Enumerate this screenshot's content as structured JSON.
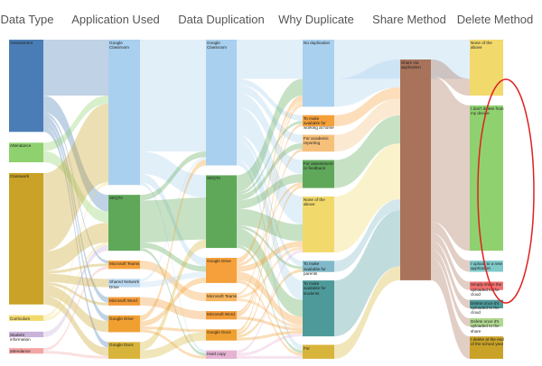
{
  "chart_data": {
    "type": "sankey",
    "columns": [
      {
        "name": "Data Type",
        "nodes": [
          {
            "label": "Assessment",
            "value": 33,
            "color": "#4a7db5"
          },
          {
            "label": "Attendance",
            "value": 7,
            "color": "#8fd16e"
          },
          {
            "label": "Classwork",
            "value": 47,
            "color": "#c9a227"
          },
          {
            "label": "Curriculum",
            "value": 2,
            "color": "#f2d96b"
          },
          {
            "label": "Student information",
            "value": 2,
            "color": "#c9b3d9"
          },
          {
            "label": "attendance",
            "value": 2,
            "color": "#f4a6a6"
          }
        ]
      },
      {
        "name": "Application Used",
        "nodes": [
          {
            "label": "Google Classroom",
            "value": 52,
            "color": "#a9d0ee"
          },
          {
            "label": "SEQTA",
            "value": 20,
            "color": "#5fa85a"
          },
          {
            "label": "Microsoft Teams",
            "value": 3,
            "color": "#f5a03a"
          },
          {
            "label": "Shared Network Drive",
            "value": 3,
            "color": "#bcd9f0"
          },
          {
            "label": "Microsoft Word",
            "value": 3,
            "color": "#f29a38"
          },
          {
            "label": "Google Drive",
            "value": 6,
            "color": "#f0a030"
          },
          {
            "label": "Google Docs",
            "value": 6,
            "color": "#d8b43a"
          }
        ]
      },
      {
        "name": "Data Duplication",
        "nodes": [
          {
            "label": "Google Classroom",
            "value": 45,
            "color": "#a9d0ee"
          },
          {
            "label": "SEQTA",
            "value": 26,
            "color": "#5fa85a"
          },
          {
            "label": "Google Drive",
            "value": 9,
            "color": "#f5a03a"
          },
          {
            "label": "Microsoft Teams",
            "value": 3,
            "color": "#f7b55e"
          },
          {
            "label": "Microsoft Word",
            "value": 3,
            "color": "#f29a38"
          },
          {
            "label": "Google Docs",
            "value": 4,
            "color": "#f0a030"
          },
          {
            "label": "Hard copy",
            "value": 3,
            "color": "#e6b3d3"
          }
        ]
      },
      {
        "name": "Why Duplicate",
        "nodes": [
          {
            "label": "No duplication",
            "value": 24,
            "color": "#a9d0ee"
          },
          {
            "label": "To make available for working at home",
            "value": 4,
            "color": "#f5a03a"
          },
          {
            "label": "For academic reporting",
            "value": 6,
            "color": "#f7c07a"
          },
          {
            "label": "For assessment or feedback",
            "value": 10,
            "color": "#5fa85a"
          },
          {
            "label": "None of the above",
            "value": 20,
            "color": "#f2d96b"
          },
          {
            "label": "To make available for parents",
            "value": 4,
            "color": "#7fb8c9"
          },
          {
            "label": "To make available for students",
            "value": 20,
            "color": "#4e9a9a"
          },
          {
            "label": "For",
            "value": 5,
            "color": "#d8b43a"
          }
        ]
      },
      {
        "name": "Share Method",
        "nodes": [
          {
            "label": "Share via application",
            "value": 79,
            "color": "#a8735a"
          }
        ]
      },
      {
        "name": "Delete Method",
        "nodes": [
          {
            "label": "None of the above",
            "value": 20,
            "color": "#f2d96b"
          },
          {
            "label": "I don't delete from my device",
            "value": 52,
            "color": "#8fd16e"
          },
          {
            "label": "I upload to a new application",
            "value": 4,
            "color": "#7fc9c9"
          },
          {
            "label": "Simply share the uploaded to the cloud",
            "value": 3,
            "color": "#f07070"
          },
          {
            "label": "Delete once it's uploaded to the cloud",
            "value": 3,
            "color": "#4e9a9a"
          },
          {
            "label": "Delete once it's uploaded to the share",
            "value": 3,
            "color": "#b0d890"
          },
          {
            "label": "I delete at the end of the school year",
            "value": 8,
            "color": "#c9a227"
          }
        ]
      }
    ],
    "links": [
      {
        "from": [
          0,
          0
        ],
        "to": [
          1,
          0
        ],
        "value": 20
      },
      {
        "from": [
          0,
          0
        ],
        "to": [
          1,
          1
        ],
        "value": 6
      },
      {
        "from": [
          0,
          0
        ],
        "to": [
          1,
          2
        ],
        "value": 1
      },
      {
        "from": [
          0,
          0
        ],
        "to": [
          1,
          4
        ],
        "value": 2
      },
      {
        "from": [
          0,
          0
        ],
        "to": [
          1,
          5
        ],
        "value": 2
      },
      {
        "from": [
          0,
          0
        ],
        "to": [
          1,
          6
        ],
        "value": 2
      },
      {
        "from": [
          0,
          1
        ],
        "to": [
          1,
          0
        ],
        "value": 3
      },
      {
        "from": [
          0,
          1
        ],
        "to": [
          1,
          1
        ],
        "value": 4
      },
      {
        "from": [
          0,
          2
        ],
        "to": [
          1,
          0
        ],
        "value": 28
      },
      {
        "from": [
          0,
          2
        ],
        "to": [
          1,
          1
        ],
        "value": 7
      },
      {
        "from": [
          0,
          2
        ],
        "to": [
          1,
          2
        ],
        "value": 1
      },
      {
        "from": [
          0,
          2
        ],
        "to": [
          1,
          3
        ],
        "value": 3
      },
      {
        "from": [
          0,
          2
        ],
        "to": [
          1,
          4
        ],
        "value": 1
      },
      {
        "from": [
          0,
          2
        ],
        "to": [
          1,
          5
        ],
        "value": 4
      },
      {
        "from": [
          0,
          2
        ],
        "to": [
          1,
          6
        ],
        "value": 3
      },
      {
        "from": [
          0,
          3
        ],
        "to": [
          1,
          0
        ],
        "value": 1
      },
      {
        "from": [
          0,
          3
        ],
        "to": [
          1,
          1
        ],
        "value": 1
      },
      {
        "from": [
          0,
          4
        ],
        "to": [
          1,
          1
        ],
        "value": 2
      },
      {
        "from": [
          0,
          5
        ],
        "to": [
          1,
          2
        ],
        "value": 1
      },
      {
        "from": [
          0,
          5
        ],
        "to": [
          1,
          6
        ],
        "value": 1
      },
      {
        "from": [
          1,
          0
        ],
        "to": [
          2,
          0
        ],
        "value": 40
      },
      {
        "from": [
          1,
          0
        ],
        "to": [
          2,
          1
        ],
        "value": 8
      },
      {
        "from": [
          1,
          0
        ],
        "to": [
          2,
          2
        ],
        "value": 3
      },
      {
        "from": [
          1,
          0
        ],
        "to": [
          2,
          6
        ],
        "value": 1
      },
      {
        "from": [
          1,
          1
        ],
        "to": [
          2,
          0
        ],
        "value": 2
      },
      {
        "from": [
          1,
          1
        ],
        "to": [
          2,
          1
        ],
        "value": 15
      },
      {
        "from": [
          1,
          1
        ],
        "to": [
          2,
          2
        ],
        "value": 2
      },
      {
        "from": [
          1,
          1
        ],
        "to": [
          2,
          6
        ],
        "value": 1
      },
      {
        "from": [
          1,
          2
        ],
        "to": [
          2,
          3
        ],
        "value": 3
      },
      {
        "from": [
          1,
          3
        ],
        "to": [
          2,
          0
        ],
        "value": 1
      },
      {
        "from": [
          1,
          3
        ],
        "to": [
          2,
          2
        ],
        "value": 2
      },
      {
        "from": [
          1,
          4
        ],
        "to": [
          2,
          4
        ],
        "value": 3
      },
      {
        "from": [
          1,
          5
        ],
        "to": [
          2,
          0
        ],
        "value": 2
      },
      {
        "from": [
          1,
          5
        ],
        "to": [
          2,
          2
        ],
        "value": 2
      },
      {
        "from": [
          1,
          5
        ],
        "to": [
          2,
          5
        ],
        "value": 1
      },
      {
        "from": [
          1,
          5
        ],
        "to": [
          2,
          6
        ],
        "value": 1
      },
      {
        "from": [
          1,
          6
        ],
        "to": [
          2,
          1
        ],
        "value": 3
      },
      {
        "from": [
          1,
          6
        ],
        "to": [
          2,
          5
        ],
        "value": 3
      },
      {
        "from": [
          2,
          0
        ],
        "to": [
          3,
          0
        ],
        "value": 14
      },
      {
        "from": [
          2,
          0
        ],
        "to": [
          3,
          1
        ],
        "value": 2
      },
      {
        "from": [
          2,
          0
        ],
        "to": [
          3,
          2
        ],
        "value": 3
      },
      {
        "from": [
          2,
          0
        ],
        "to": [
          3,
          3
        ],
        "value": 5
      },
      {
        "from": [
          2,
          0
        ],
        "to": [
          3,
          4
        ],
        "value": 10
      },
      {
        "from": [
          2,
          0
        ],
        "to": [
          3,
          5
        ],
        "value": 2
      },
      {
        "from": [
          2,
          0
        ],
        "to": [
          3,
          6
        ],
        "value": 7
      },
      {
        "from": [
          2,
          0
        ],
        "to": [
          3,
          7
        ],
        "value": 2
      },
      {
        "from": [
          2,
          1
        ],
        "to": [
          3,
          0
        ],
        "value": 6
      },
      {
        "from": [
          2,
          1
        ],
        "to": [
          3,
          1
        ],
        "value": 1
      },
      {
        "from": [
          2,
          1
        ],
        "to": [
          3,
          2
        ],
        "value": 2
      },
      {
        "from": [
          2,
          1
        ],
        "to": [
          3,
          3
        ],
        "value": 3
      },
      {
        "from": [
          2,
          1
        ],
        "to": [
          3,
          4
        ],
        "value": 6
      },
      {
        "from": [
          2,
          1
        ],
        "to": [
          3,
          5
        ],
        "value": 1
      },
      {
        "from": [
          2,
          1
        ],
        "to": [
          3,
          6
        ],
        "value": 6
      },
      {
        "from": [
          2,
          1
        ],
        "to": [
          3,
          7
        ],
        "value": 1
      },
      {
        "from": [
          2,
          2
        ],
        "to": [
          3,
          0
        ],
        "value": 2
      },
      {
        "from": [
          2,
          2
        ],
        "to": [
          3,
          3
        ],
        "value": 1
      },
      {
        "from": [
          2,
          2
        ],
        "to": [
          3,
          4
        ],
        "value": 2
      },
      {
        "from": [
          2,
          2
        ],
        "to": [
          3,
          6
        ],
        "value": 3
      },
      {
        "from": [
          2,
          2
        ],
        "to": [
          3,
          7
        ],
        "value": 1
      },
      {
        "from": [
          2,
          3
        ],
        "to": [
          3,
          0
        ],
        "value": 1
      },
      {
        "from": [
          2,
          3
        ],
        "to": [
          3,
          4
        ],
        "value": 1
      },
      {
        "from": [
          2,
          3
        ],
        "to": [
          3,
          6
        ],
        "value": 1
      },
      {
        "from": [
          2,
          4
        ],
        "to": [
          3,
          1
        ],
        "value": 1
      },
      {
        "from": [
          2,
          4
        ],
        "to": [
          3,
          2
        ],
        "value": 1
      },
      {
        "from": [
          2,
          4
        ],
        "to": [
          3,
          6
        ],
        "value": 1
      },
      {
        "from": [
          2,
          5
        ],
        "to": [
          3,
          0
        ],
        "value": 1
      },
      {
        "from": [
          2,
          5
        ],
        "to": [
          3,
          3
        ],
        "value": 1
      },
      {
        "from": [
          2,
          5
        ],
        "to": [
          3,
          5
        ],
        "value": 1
      },
      {
        "from": [
          2,
          5
        ],
        "to": [
          3,
          6
        ],
        "value": 1
      },
      {
        "from": [
          2,
          6
        ],
        "to": [
          3,
          4
        ],
        "value": 1
      },
      {
        "from": [
          2,
          6
        ],
        "to": [
          3,
          6
        ],
        "value": 1
      },
      {
        "from": [
          2,
          6
        ],
        "to": [
          3,
          7
        ],
        "value": 1
      },
      {
        "from": [
          3,
          0
        ],
        "to": [
          5,
          0
        ],
        "value": 14
      },
      {
        "from": [
          3,
          0
        ],
        "to": [
          4,
          0
        ],
        "value": 10
      },
      {
        "from": [
          3,
          1
        ],
        "to": [
          4,
          0
        ],
        "value": 4
      },
      {
        "from": [
          3,
          2
        ],
        "to": [
          4,
          0
        ],
        "value": 6
      },
      {
        "from": [
          3,
          3
        ],
        "to": [
          4,
          0
        ],
        "value": 10
      },
      {
        "from": [
          3,
          4
        ],
        "to": [
          4,
          0
        ],
        "value": 20
      },
      {
        "from": [
          3,
          5
        ],
        "to": [
          4,
          0
        ],
        "value": 4
      },
      {
        "from": [
          3,
          6
        ],
        "to": [
          4,
          0
        ],
        "value": 20
      },
      {
        "from": [
          3,
          7
        ],
        "to": [
          4,
          0
        ],
        "value": 5
      },
      {
        "from": [
          4,
          0
        ],
        "to": [
          5,
          0
        ],
        "value": 6
      },
      {
        "from": [
          4,
          0
        ],
        "to": [
          5,
          1
        ],
        "value": 52
      },
      {
        "from": [
          4,
          0
        ],
        "to": [
          5,
          2
        ],
        "value": 4
      },
      {
        "from": [
          4,
          0
        ],
        "to": [
          5,
          3
        ],
        "value": 3
      },
      {
        "from": [
          4,
          0
        ],
        "to": [
          5,
          4
        ],
        "value": 3
      },
      {
        "from": [
          4,
          0
        ],
        "to": [
          5,
          5
        ],
        "value": 3
      },
      {
        "from": [
          4,
          0
        ],
        "to": [
          5,
          6
        ],
        "value": 8
      }
    ]
  }
}
